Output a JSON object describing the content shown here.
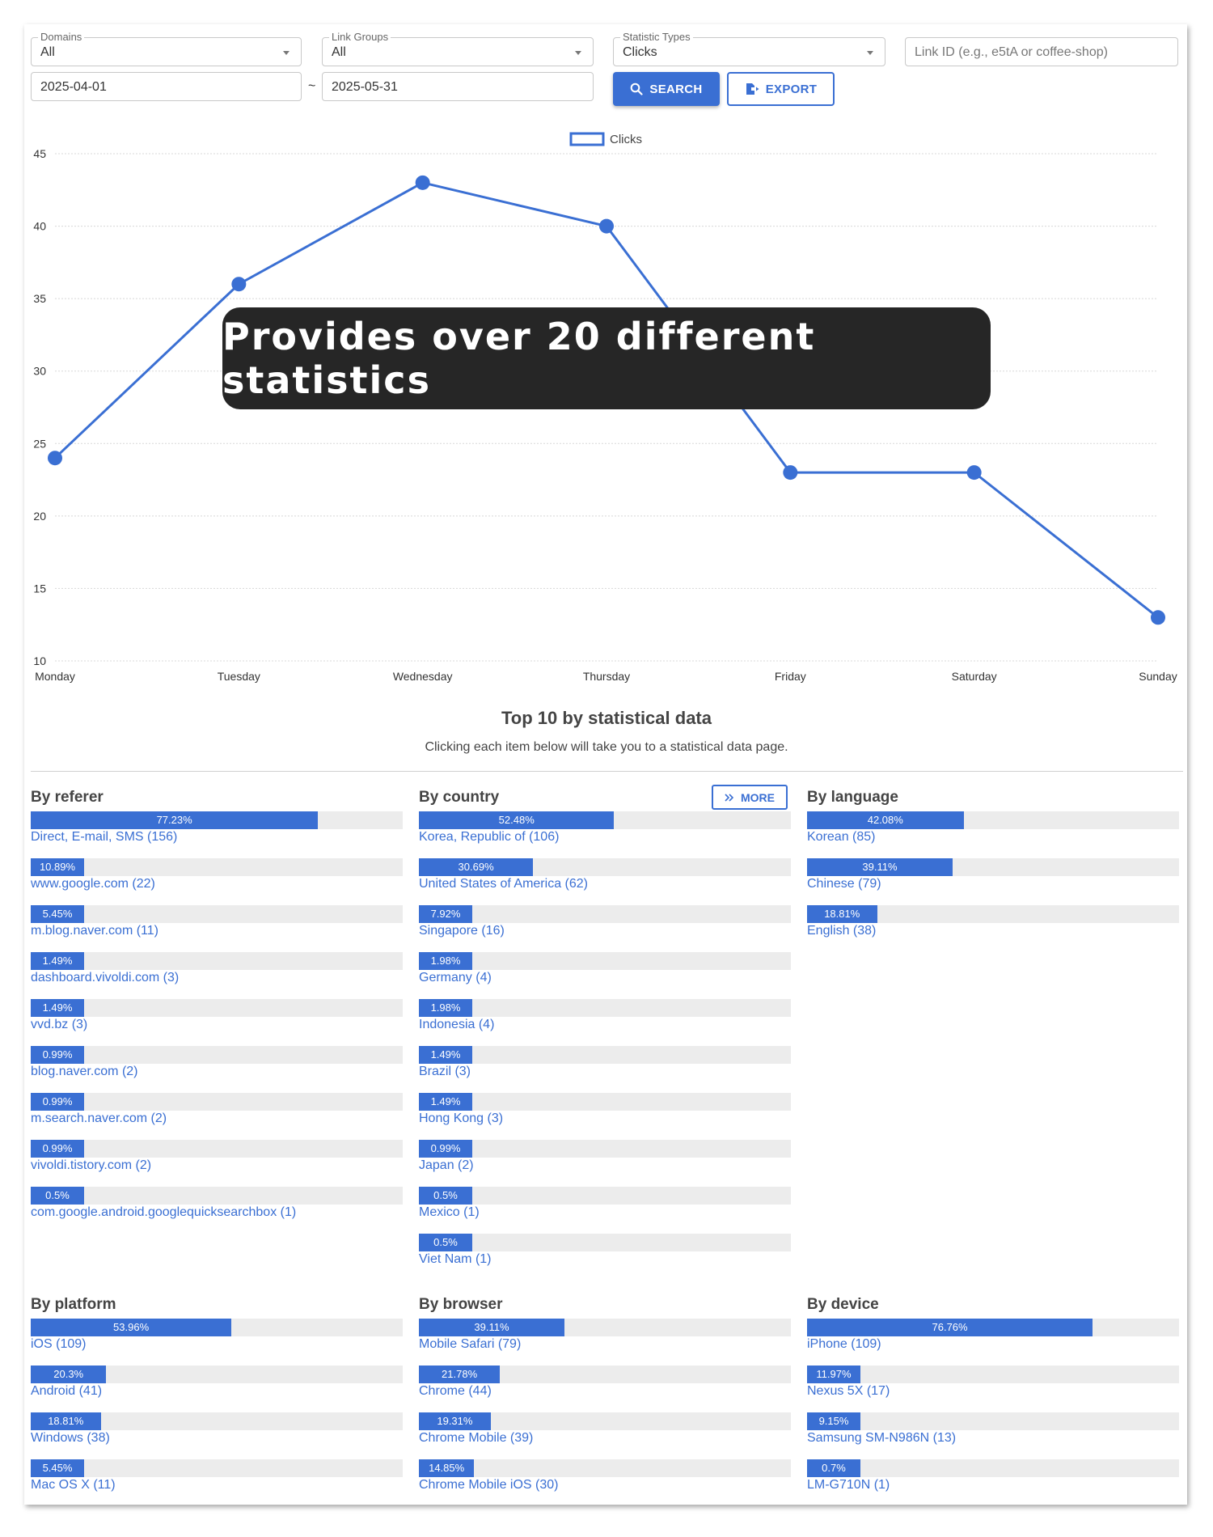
{
  "filters": {
    "domains": {
      "label": "Domains",
      "value": "All"
    },
    "link_groups": {
      "label": "Link Groups",
      "value": "All"
    },
    "statistic_types": {
      "label": "Statistic Types",
      "value": "Clicks"
    },
    "link_id": {
      "placeholder": "Link ID (e.g., e5tA or coffee-shop)"
    },
    "date_from": "2025-04-01",
    "date_separator": "~",
    "date_to": "2025-05-31",
    "search_label": "SEARCH",
    "export_label": "EXPORT"
  },
  "chart_data": {
    "type": "line",
    "categories": [
      "Monday",
      "Tuesday",
      "Wednesday",
      "Thursday",
      "Friday",
      "Saturday",
      "Sunday"
    ],
    "series": [
      {
        "name": "Clicks",
        "values": [
          24,
          36,
          43,
          40,
          23,
          23,
          13
        ]
      }
    ],
    "ylim": [
      10,
      45
    ],
    "yticks": [
      10,
      15,
      20,
      25,
      30,
      35,
      40,
      45
    ],
    "grid": true,
    "legend": "top-center",
    "color": "#3a6fd3"
  },
  "overlay": {
    "text": "Provides over 20 different statistics"
  },
  "top10": {
    "title": "Top 10 by statistical data",
    "subtitle": "Clicking each item below will take you to a statistical data page.",
    "more_label": "MORE"
  },
  "groups": {
    "referer": {
      "title": "By referer",
      "items": [
        {
          "pct": "77.23%",
          "frac": 0.7723,
          "label": "Direct, E-mail, SMS (156)"
        },
        {
          "pct": "10.89%",
          "frac": 0.1089,
          "label": "www.google.com (22)"
        },
        {
          "pct": "5.45%",
          "frac": 0.0545,
          "label": "m.blog.naver.com (11)"
        },
        {
          "pct": "1.49%",
          "frac": 0.0149,
          "label": "dashboard.vivoldi.com (3)"
        },
        {
          "pct": "1.49%",
          "frac": 0.0149,
          "label": "vvd.bz (3)"
        },
        {
          "pct": "0.99%",
          "frac": 0.0099,
          "label": "blog.naver.com (2)"
        },
        {
          "pct": "0.99%",
          "frac": 0.0099,
          "label": "m.search.naver.com (2)"
        },
        {
          "pct": "0.99%",
          "frac": 0.0099,
          "label": "vivoldi.tistory.com (2)"
        },
        {
          "pct": "0.5%",
          "frac": 0.005,
          "label": "com.google.android.googlequicksearchbox (1)"
        }
      ]
    },
    "country": {
      "title": "By country",
      "items": [
        {
          "pct": "52.48%",
          "frac": 0.5248,
          "label": "Korea, Republic of (106)"
        },
        {
          "pct": "30.69%",
          "frac": 0.3069,
          "label": "United States of America (62)"
        },
        {
          "pct": "7.92%",
          "frac": 0.0792,
          "label": "Singapore (16)"
        },
        {
          "pct": "1.98%",
          "frac": 0.0198,
          "label": "Germany (4)"
        },
        {
          "pct": "1.98%",
          "frac": 0.0198,
          "label": "Indonesia (4)"
        },
        {
          "pct": "1.49%",
          "frac": 0.0149,
          "label": "Brazil (3)"
        },
        {
          "pct": "1.49%",
          "frac": 0.0149,
          "label": "Hong Kong (3)"
        },
        {
          "pct": "0.99%",
          "frac": 0.0099,
          "label": "Japan (2)"
        },
        {
          "pct": "0.5%",
          "frac": 0.005,
          "label": "Mexico (1)"
        },
        {
          "pct": "0.5%",
          "frac": 0.005,
          "label": "Viet Nam (1)"
        }
      ]
    },
    "language": {
      "title": "By language",
      "items": [
        {
          "pct": "42.08%",
          "frac": 0.4208,
          "label": "Korean (85)"
        },
        {
          "pct": "39.11%",
          "frac": 0.3911,
          "label": "Chinese (79)"
        },
        {
          "pct": "18.81%",
          "frac": 0.1881,
          "label": "English (38)"
        }
      ]
    },
    "platform": {
      "title": "By platform",
      "items": [
        {
          "pct": "53.96%",
          "frac": 0.5396,
          "label": "iOS (109)"
        },
        {
          "pct": "20.3%",
          "frac": 0.203,
          "label": "Android (41)"
        },
        {
          "pct": "18.81%",
          "frac": 0.1881,
          "label": "Windows (38)"
        },
        {
          "pct": "5.45%",
          "frac": 0.0545,
          "label": "Mac OS X (11)"
        }
      ]
    },
    "browser": {
      "title": "By browser",
      "items": [
        {
          "pct": "39.11%",
          "frac": 0.3911,
          "label": "Mobile Safari (79)"
        },
        {
          "pct": "21.78%",
          "frac": 0.2178,
          "label": "Chrome (44)"
        },
        {
          "pct": "19.31%",
          "frac": 0.1931,
          "label": "Chrome Mobile (39)"
        },
        {
          "pct": "14.85%",
          "frac": 0.1485,
          "label": "Chrome Mobile iOS (30)"
        }
      ]
    },
    "device": {
      "title": "By device",
      "items": [
        {
          "pct": "76.76%",
          "frac": 0.7676,
          "label": "iPhone (109)"
        },
        {
          "pct": "11.97%",
          "frac": 0.1197,
          "label": "Nexus 5X (17)"
        },
        {
          "pct": "9.15%",
          "frac": 0.0915,
          "label": "Samsung SM-N986N (13)"
        },
        {
          "pct": "0.7%",
          "frac": 0.007,
          "label": "LM-G710N (1)"
        }
      ]
    }
  }
}
